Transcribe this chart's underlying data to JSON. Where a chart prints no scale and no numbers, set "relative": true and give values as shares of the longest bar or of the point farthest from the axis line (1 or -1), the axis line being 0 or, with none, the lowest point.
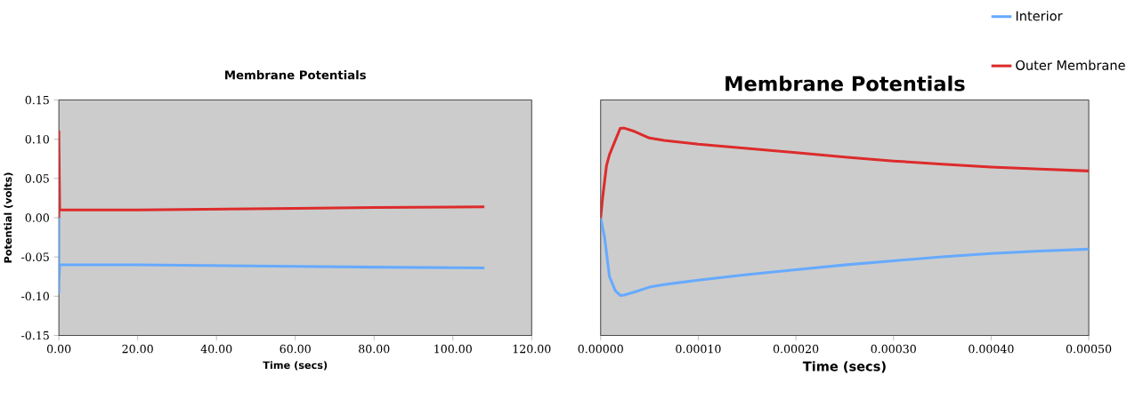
{
  "chart_data": [
    {
      "type": "line",
      "title": "Membrane Potentials",
      "xlabel": "Time (secs)",
      "ylabel": "Potential (volts)",
      "xlim": [
        0,
        120
      ],
      "xticks": [
        {
          "value": 0,
          "label": "0.00"
        },
        {
          "value": 20,
          "label": "20.00"
        },
        {
          "value": 40,
          "label": "40.00"
        },
        {
          "value": 60,
          "label": "60.00"
        },
        {
          "value": 80,
          "label": "80.00"
        },
        {
          "value": 100,
          "label": "100.00"
        },
        {
          "value": 120,
          "label": "120.00"
        }
      ],
      "ylim": [
        -0.15,
        0.15
      ],
      "yticks": [
        {
          "value": -0.15,
          "label": "-0.15"
        },
        {
          "value": -0.1,
          "label": "-0.10"
        },
        {
          "value": -0.05,
          "label": "-0.05"
        },
        {
          "value": 0,
          "label": "0.00"
        },
        {
          "value": 0.05,
          "label": "0.05"
        },
        {
          "value": 0.1,
          "label": "0.10"
        },
        {
          "value": 0.15,
          "label": "0.15"
        }
      ],
      "series": [
        {
          "color": "#66aaff",
          "x": [
            0,
            0.0002,
            0.0005,
            0.2,
            20,
            40,
            60,
            80,
            108
          ],
          "values": [
            0,
            -0.095,
            -0.085,
            -0.06,
            -0.06,
            -0.061,
            -0.062,
            -0.063,
            -0.064
          ]
        },
        {
          "color": "#dd2b2b",
          "x": [
            0,
            0.0002,
            0.0005,
            0.2,
            20,
            40,
            60,
            80,
            108
          ],
          "values": [
            0,
            0.11,
            0.1,
            0.01,
            0.01,
            0.011,
            0.012,
            0.013,
            0.014
          ]
        }
      ]
    },
    {
      "type": "line",
      "title": "Membrane Potentials",
      "xlabel": "Time (secs)",
      "relative": true,
      "legend": "top right",
      "xlim": [
        0,
        0.0005
      ],
      "xticks": [
        {
          "value": 0,
          "label": "0.00000"
        },
        {
          "value": 0.0001,
          "label": "0.00010"
        },
        {
          "value": 0.0002,
          "label": "0.00020"
        },
        {
          "value": 0.0003,
          "label": "0.00030"
        },
        {
          "value": 0.0004,
          "label": "0.00040"
        },
        {
          "value": 0.0005,
          "label": "0.00050"
        }
      ],
      "series": [
        {
          "name": "Interior",
          "color": "#66aaff",
          "x": [
            0,
            4e-06,
            9e-06,
            1.5e-05,
            2e-05,
            2.4e-05,
            3.5e-05,
            5e-05,
            6.5e-05,
            0.0001,
            0.00015,
            0.0002,
            0.00025,
            0.0003,
            0.00035,
            0.0004,
            0.00045,
            0.0005
          ],
          "values": [
            0.566,
            0.474,
            0.284,
            0.216,
            0.193,
            0.195,
            0.21,
            0.233,
            0.245,
            0.267,
            0.293,
            0.317,
            0.34,
            0.36,
            0.379,
            0.395,
            0.407,
            0.416
          ]
        },
        {
          "name": "Outer Membrane",
          "color": "#dd2b2b",
          "x": [
            0,
            2e-06,
            6e-06,
            9e-06,
            2e-05,
            2.4e-05,
            3.5e-05,
            5e-05,
            6.5e-05,
            0.0001,
            0.00015,
            0.0002,
            0.00025,
            0.0003,
            0.00035,
            0.0004,
            0.00045,
            0.0005
          ],
          "values": [
            0.566,
            0.664,
            0.819,
            0.871,
            0.998,
            1.0,
            0.983,
            0.952,
            0.94,
            0.922,
            0.902,
            0.881,
            0.86,
            0.841,
            0.826,
            0.812,
            0.802,
            0.793
          ]
        }
      ]
    }
  ]
}
